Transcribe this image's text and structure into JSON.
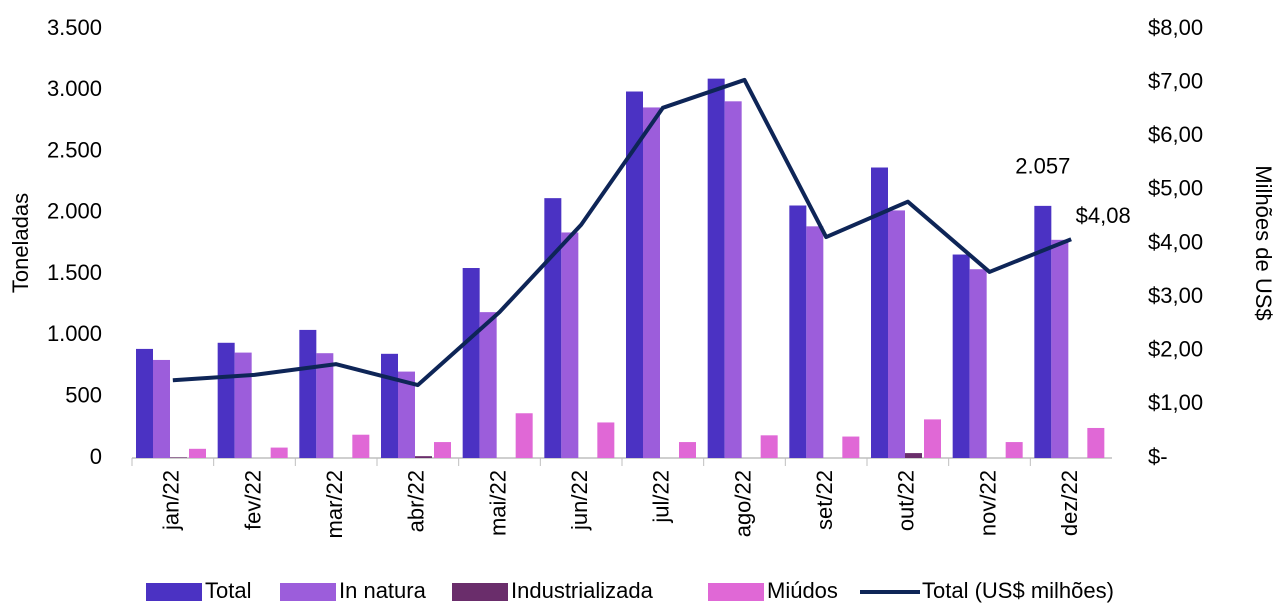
{
  "chart_data": {
    "type": "bar",
    "categories": [
      "jan/22",
      "fev/22",
      "mar/22",
      "abr/22",
      "mai/22",
      "jun/22",
      "jul/22",
      "ago/22",
      "set/22",
      "out/22",
      "nov/22",
      "dez/22"
    ],
    "ylabel": "Toneladas",
    "y2label": "Milhões de US$",
    "ylim": [
      0,
      3500
    ],
    "yticks": [
      0,
      500,
      {
        "value": 1000,
        "label": "1.000"
      },
      {
        "value": 1500,
        "label": "1.500"
      },
      {
        "value": 2000,
        "label": "2.000"
      },
      {
        "value": 2500,
        "label": "2.500"
      },
      {
        "value": 3000,
        "label": "3.000"
      },
      {
        "value": 3500,
        "label": "3.500"
      }
    ],
    "y2lim": [
      0,
      8
    ],
    "y2ticks": [
      {
        "value": 0,
        "label": "$-"
      },
      {
        "value": 1,
        "label": "$1,00"
      },
      {
        "value": 2,
        "label": "$2,00"
      },
      {
        "value": 3,
        "label": "$3,00"
      },
      {
        "value": 4,
        "label": "$4,00"
      },
      {
        "value": 5,
        "label": "$5,00"
      },
      {
        "value": 6,
        "label": "$6,00"
      },
      {
        "value": 7,
        "label": "$7,00"
      },
      {
        "value": 8,
        "label": "$8,00"
      }
    ],
    "series": [
      {
        "name": "Total",
        "type": "bar",
        "color": "#4b32c3",
        "values": [
          890,
          940,
          1045,
          850,
          1550,
          2120,
          2990,
          3095,
          2060,
          2370,
          1660,
          2057
        ],
        "value_labels": [
          null,
          null,
          null,
          null,
          null,
          null,
          null,
          null,
          null,
          null,
          null,
          "2.057"
        ]
      },
      {
        "name": "In natura",
        "type": "bar",
        "color": "#9c5ddb",
        "values": [
          800,
          860,
          855,
          705,
          1190,
          1840,
          2860,
          2910,
          1890,
          2020,
          1540,
          1780
        ]
      },
      {
        "name": "Industrializada",
        "type": "bar",
        "color": "#6a2d6b",
        "values": [
          5,
          0,
          0,
          15,
          0,
          0,
          0,
          0,
          0,
          40,
          0,
          0
        ]
      },
      {
        "name": "Miúdos",
        "type": "bar",
        "color": "#e068d6",
        "values": [
          75,
          85,
          190,
          130,
          365,
          290,
          130,
          185,
          175,
          315,
          130,
          245
        ]
      },
      {
        "name": "Total (US$ milhões)",
        "type": "line",
        "axis": "y2",
        "color": "#0e2557",
        "values": [
          1.45,
          1.55,
          1.75,
          1.36,
          2.72,
          4.35,
          6.53,
          7.05,
          4.12,
          4.78,
          3.47,
          4.08
        ],
        "value_labels": [
          null,
          null,
          null,
          null,
          null,
          null,
          null,
          null,
          null,
          null,
          null,
          "$4,08"
        ]
      }
    ]
  }
}
